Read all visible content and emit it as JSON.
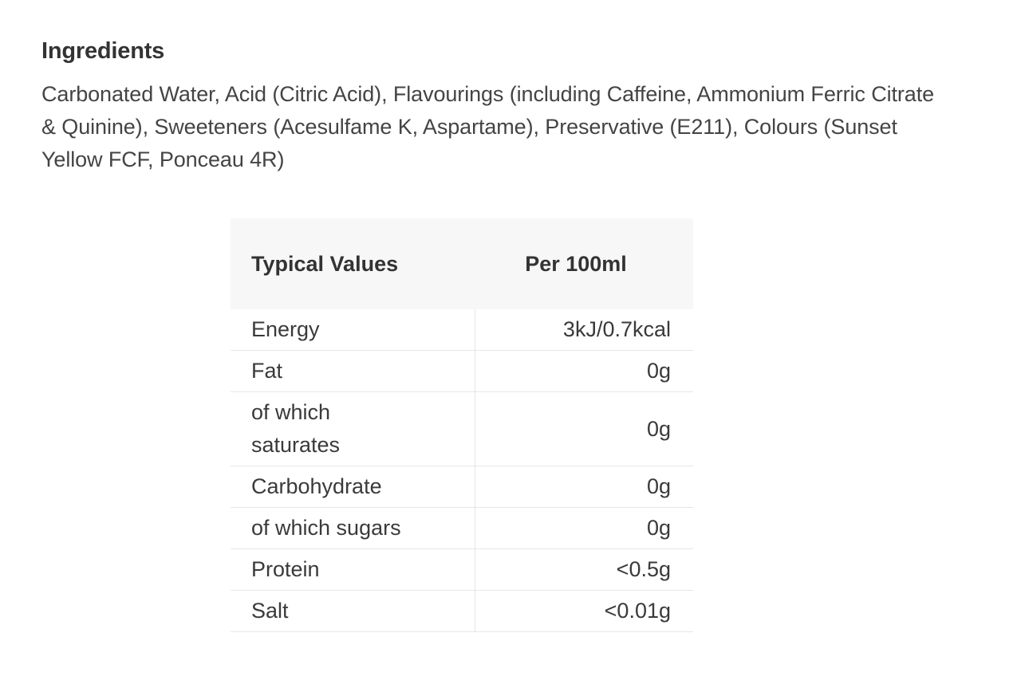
{
  "ingredients": {
    "heading": "Ingredients",
    "text": "Carbonated Water, Acid (Citric Acid), Flavourings (including Caffeine, Ammonium Ferric Citrate & Quinine), Sweeteners (Acesulfame K, Aspartame), Preservative (E211), Colours (Sunset Yellow FCF, Ponceau 4R)"
  },
  "nutrition": {
    "header_label": "Typical Values",
    "header_value": "Per 100ml",
    "rows": [
      {
        "label": "Energy",
        "value": "3kJ/0.7kcal"
      },
      {
        "label": "Fat",
        "value": "0g"
      },
      {
        "label": "of which saturates",
        "value": "0g"
      },
      {
        "label": "Carbohydrate",
        "value": "0g"
      },
      {
        "label": "of which sugars",
        "value": "0g"
      },
      {
        "label": "Protein",
        "value": "<0.5g"
      },
      {
        "label": "Salt",
        "value": "<0.01g"
      }
    ]
  }
}
